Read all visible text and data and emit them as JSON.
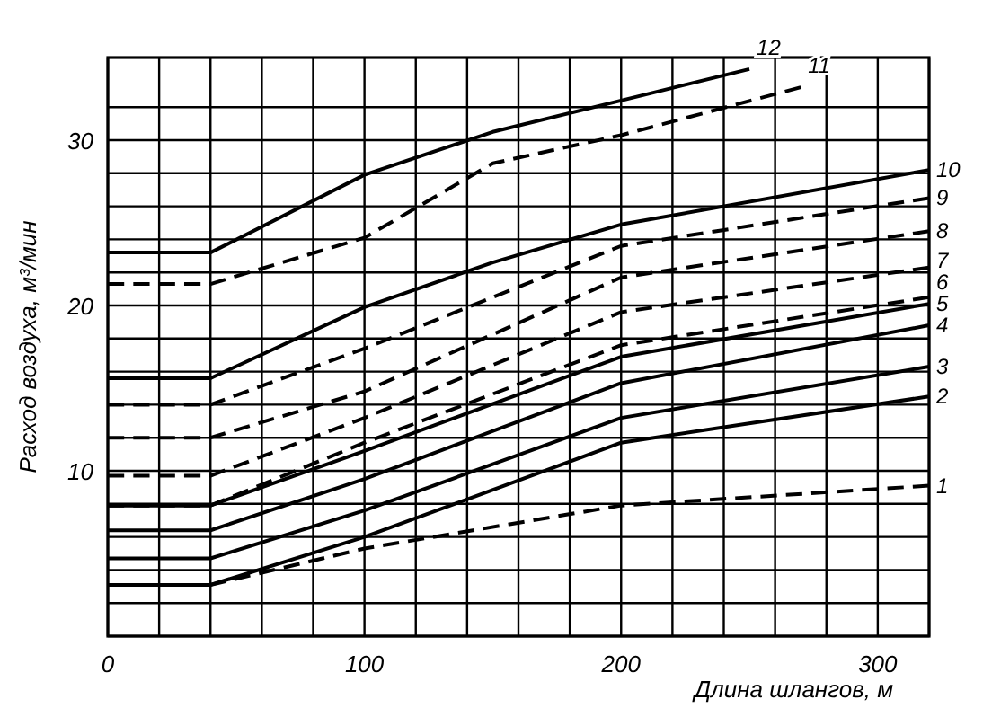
{
  "chart_data": {
    "type": "line",
    "xlabel": "Длина шлангов, м",
    "ylabel": "Расход воздуха, м³/мин",
    "xlim": [
      0,
      320
    ],
    "ylim": [
      0,
      35
    ],
    "xticks": [
      0,
      {
        "value": 20,
        "label": null
      },
      {
        "value": 40,
        "label": null
      },
      {
        "value": 60,
        "label": null
      },
      {
        "value": 80,
        "label": null
      },
      100,
      {
        "value": 120,
        "label": null
      },
      {
        "value": 140,
        "label": null
      },
      {
        "value": 160,
        "label": null
      },
      {
        "value": 180,
        "label": null
      },
      200,
      {
        "value": 220,
        "label": null
      },
      {
        "value": 240,
        "label": null
      },
      {
        "value": 260,
        "label": null
      },
      {
        "value": 280,
        "label": null
      },
      300,
      {
        "value": 320,
        "label": null
      }
    ],
    "yticks": [
      {
        "value": 0,
        "label": null
      },
      {
        "value": 2,
        "label": null
      },
      {
        "value": 4,
        "label": null
      },
      {
        "value": 6,
        "label": null
      },
      {
        "value": 8,
        "label": null
      },
      10,
      {
        "value": 12,
        "label": null
      },
      {
        "value": 14,
        "label": null
      },
      {
        "value": 16,
        "label": null
      },
      {
        "value": 18,
        "label": null
      },
      20,
      {
        "value": 22,
        "label": null
      },
      {
        "value": 24,
        "label": null
      },
      {
        "value": 26,
        "label": null
      },
      {
        "value": 28,
        "label": null
      },
      30,
      {
        "value": 32,
        "label": null
      }
    ],
    "grid": true,
    "marker": "none",
    "series": [
      {
        "name": "1",
        "color": "#000000",
        "line_style": "dashed",
        "x": [
          0,
          40,
          100,
          200,
          320
        ],
        "values": [
          3.1,
          3.1,
          5.3,
          7.9,
          9.1
        ]
      },
      {
        "name": "2",
        "color": "#000000",
        "line_style": "solid",
        "x": [
          0,
          40,
          100,
          200,
          320
        ],
        "values": [
          3.1,
          3.1,
          6.0,
          11.7,
          14.5
        ]
      },
      {
        "name": "3",
        "color": "#000000",
        "line_style": "solid",
        "x": [
          0,
          40,
          100,
          200,
          320
        ],
        "values": [
          4.7,
          4.7,
          7.6,
          13.2,
          16.3
        ]
      },
      {
        "name": "4",
        "color": "#000000",
        "line_style": "solid",
        "x": [
          0,
          40,
          100,
          200,
          320
        ],
        "values": [
          6.4,
          6.4,
          9.5,
          15.3,
          18.8
        ]
      },
      {
        "name": "5",
        "color": "#000000",
        "line_style": "solid",
        "x": [
          0,
          40,
          100,
          200,
          320
        ],
        "values": [
          7.9,
          7.9,
          11.2,
          16.9,
          20.1
        ]
      },
      {
        "name": "6",
        "color": "#000000",
        "line_style": "dashed",
        "x": [
          0,
          40,
          100,
          200,
          320
        ],
        "values": [
          7.9,
          7.9,
          11.7,
          17.6,
          20.5
        ]
      },
      {
        "name": "7",
        "color": "#000000",
        "line_style": "dashed",
        "x": [
          0,
          40,
          100,
          200,
          320
        ],
        "values": [
          9.7,
          9.7,
          13.2,
          19.6,
          22.3
        ]
      },
      {
        "name": "8",
        "color": "#000000",
        "line_style": "dashed",
        "x": [
          0,
          40,
          100,
          200,
          320
        ],
        "values": [
          12,
          12,
          14.8,
          21.7,
          24.5
        ]
      },
      {
        "name": "9",
        "color": "#000000",
        "line_style": "dashed",
        "x": [
          0,
          40,
          100,
          200,
          320
        ],
        "values": [
          14,
          14,
          17.4,
          23.6,
          26.5
        ]
      },
      {
        "name": "10",
        "color": "#000000",
        "line_style": "solid",
        "x": [
          0,
          40,
          100,
          150,
          200,
          320
        ],
        "values": [
          15.6,
          15.6,
          19.9,
          22.6,
          24.9,
          28.2
        ]
      },
      {
        "name": "11",
        "color": "#000000",
        "line_style": "dashed",
        "x": [
          0,
          40,
          100,
          150,
          200,
          270
        ],
        "values": [
          21.3,
          21.3,
          24.1,
          28.6,
          30.3,
          33.2
        ]
      },
      {
        "name": "12",
        "color": "#000000",
        "line_style": "solid",
        "x": [
          0,
          40,
          100,
          150,
          200,
          250
        ],
        "values": [
          23.2,
          23.2,
          27.9,
          30.5,
          32.4,
          34.3
        ]
      }
    ]
  }
}
